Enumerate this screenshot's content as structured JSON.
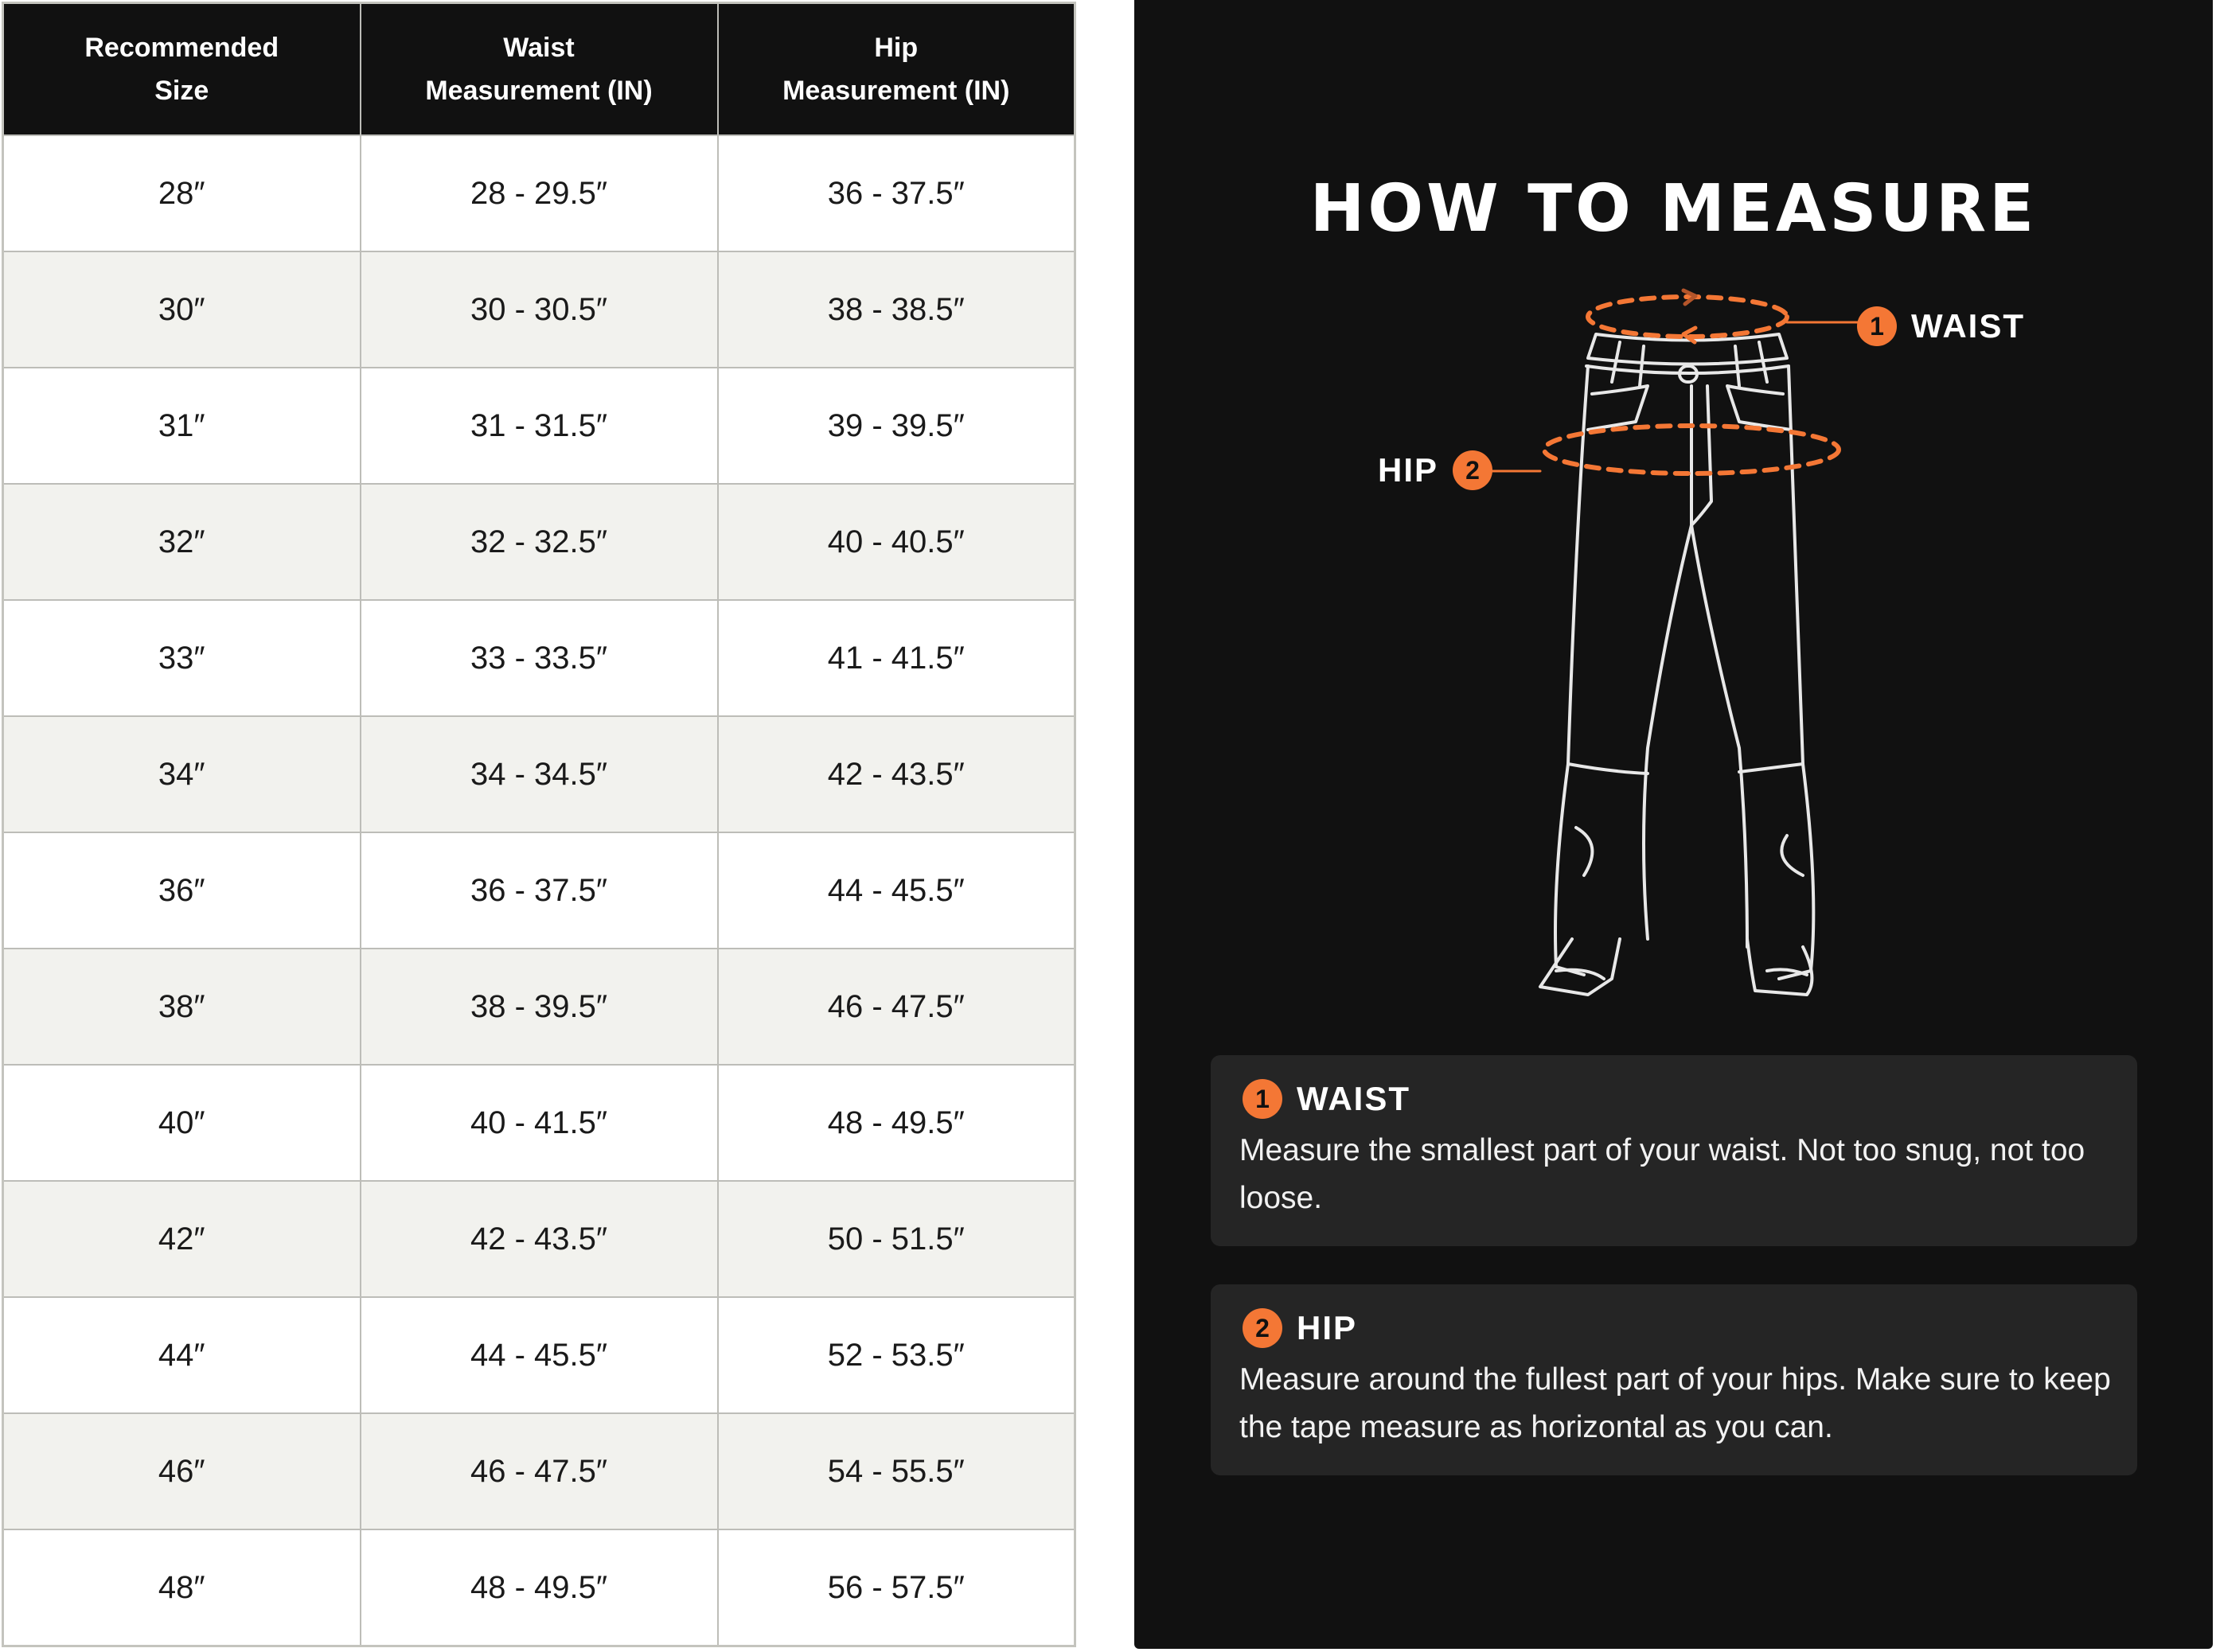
{
  "table": {
    "headers": [
      [
        "Recommended",
        "Size"
      ],
      [
        "Waist",
        "Measurement (IN)"
      ],
      [
        "Hip",
        "Measurement (IN)"
      ]
    ],
    "rows": [
      [
        "28″",
        "28 - 29.5″",
        "36 - 37.5″"
      ],
      [
        "30″",
        "30 - 30.5″",
        "38 - 38.5″"
      ],
      [
        "31″",
        "31 - 31.5″",
        "39 - 39.5″"
      ],
      [
        "32″",
        "32 - 32.5″",
        "40 - 40.5″"
      ],
      [
        "33″",
        "33 - 33.5″",
        "41 - 41.5″"
      ],
      [
        "34″",
        "34 - 34.5″",
        "42 - 43.5″"
      ],
      [
        "36″",
        "36 - 37.5″",
        "44 - 45.5″"
      ],
      [
        "38″",
        "38 - 39.5″",
        "46 - 47.5″"
      ],
      [
        "40″",
        "40 - 41.5″",
        "48 - 49.5″"
      ],
      [
        "42″",
        "42 - 43.5″",
        "50 - 51.5″"
      ],
      [
        "44″",
        "44 - 45.5″",
        "52 - 53.5″"
      ],
      [
        "46″",
        "46 - 47.5″",
        "54 - 55.5″"
      ],
      [
        "48″",
        "48 - 49.5″",
        "56 - 57.5″"
      ]
    ]
  },
  "guide": {
    "title": "HOW TO MEASURE",
    "illustration": {
      "icon": "pants-outline-icon",
      "waist_label": "WAIST",
      "waist_num": "1",
      "hip_label": "HIP",
      "hip_num": "2"
    },
    "cards": [
      {
        "num": "1",
        "title": "WAIST",
        "text": "Measure the smallest part of your waist. Not too snug, not too loose."
      },
      {
        "num": "2",
        "title": "HIP",
        "text": "Measure around the fullest part of your hips. Make sure to keep the tape measure as horizontal as you can."
      }
    ]
  },
  "colors": {
    "accent": "#f47735",
    "panel": "#111111",
    "card": "#252525",
    "header": "#111111",
    "row_alt": "#f2f2ee"
  }
}
